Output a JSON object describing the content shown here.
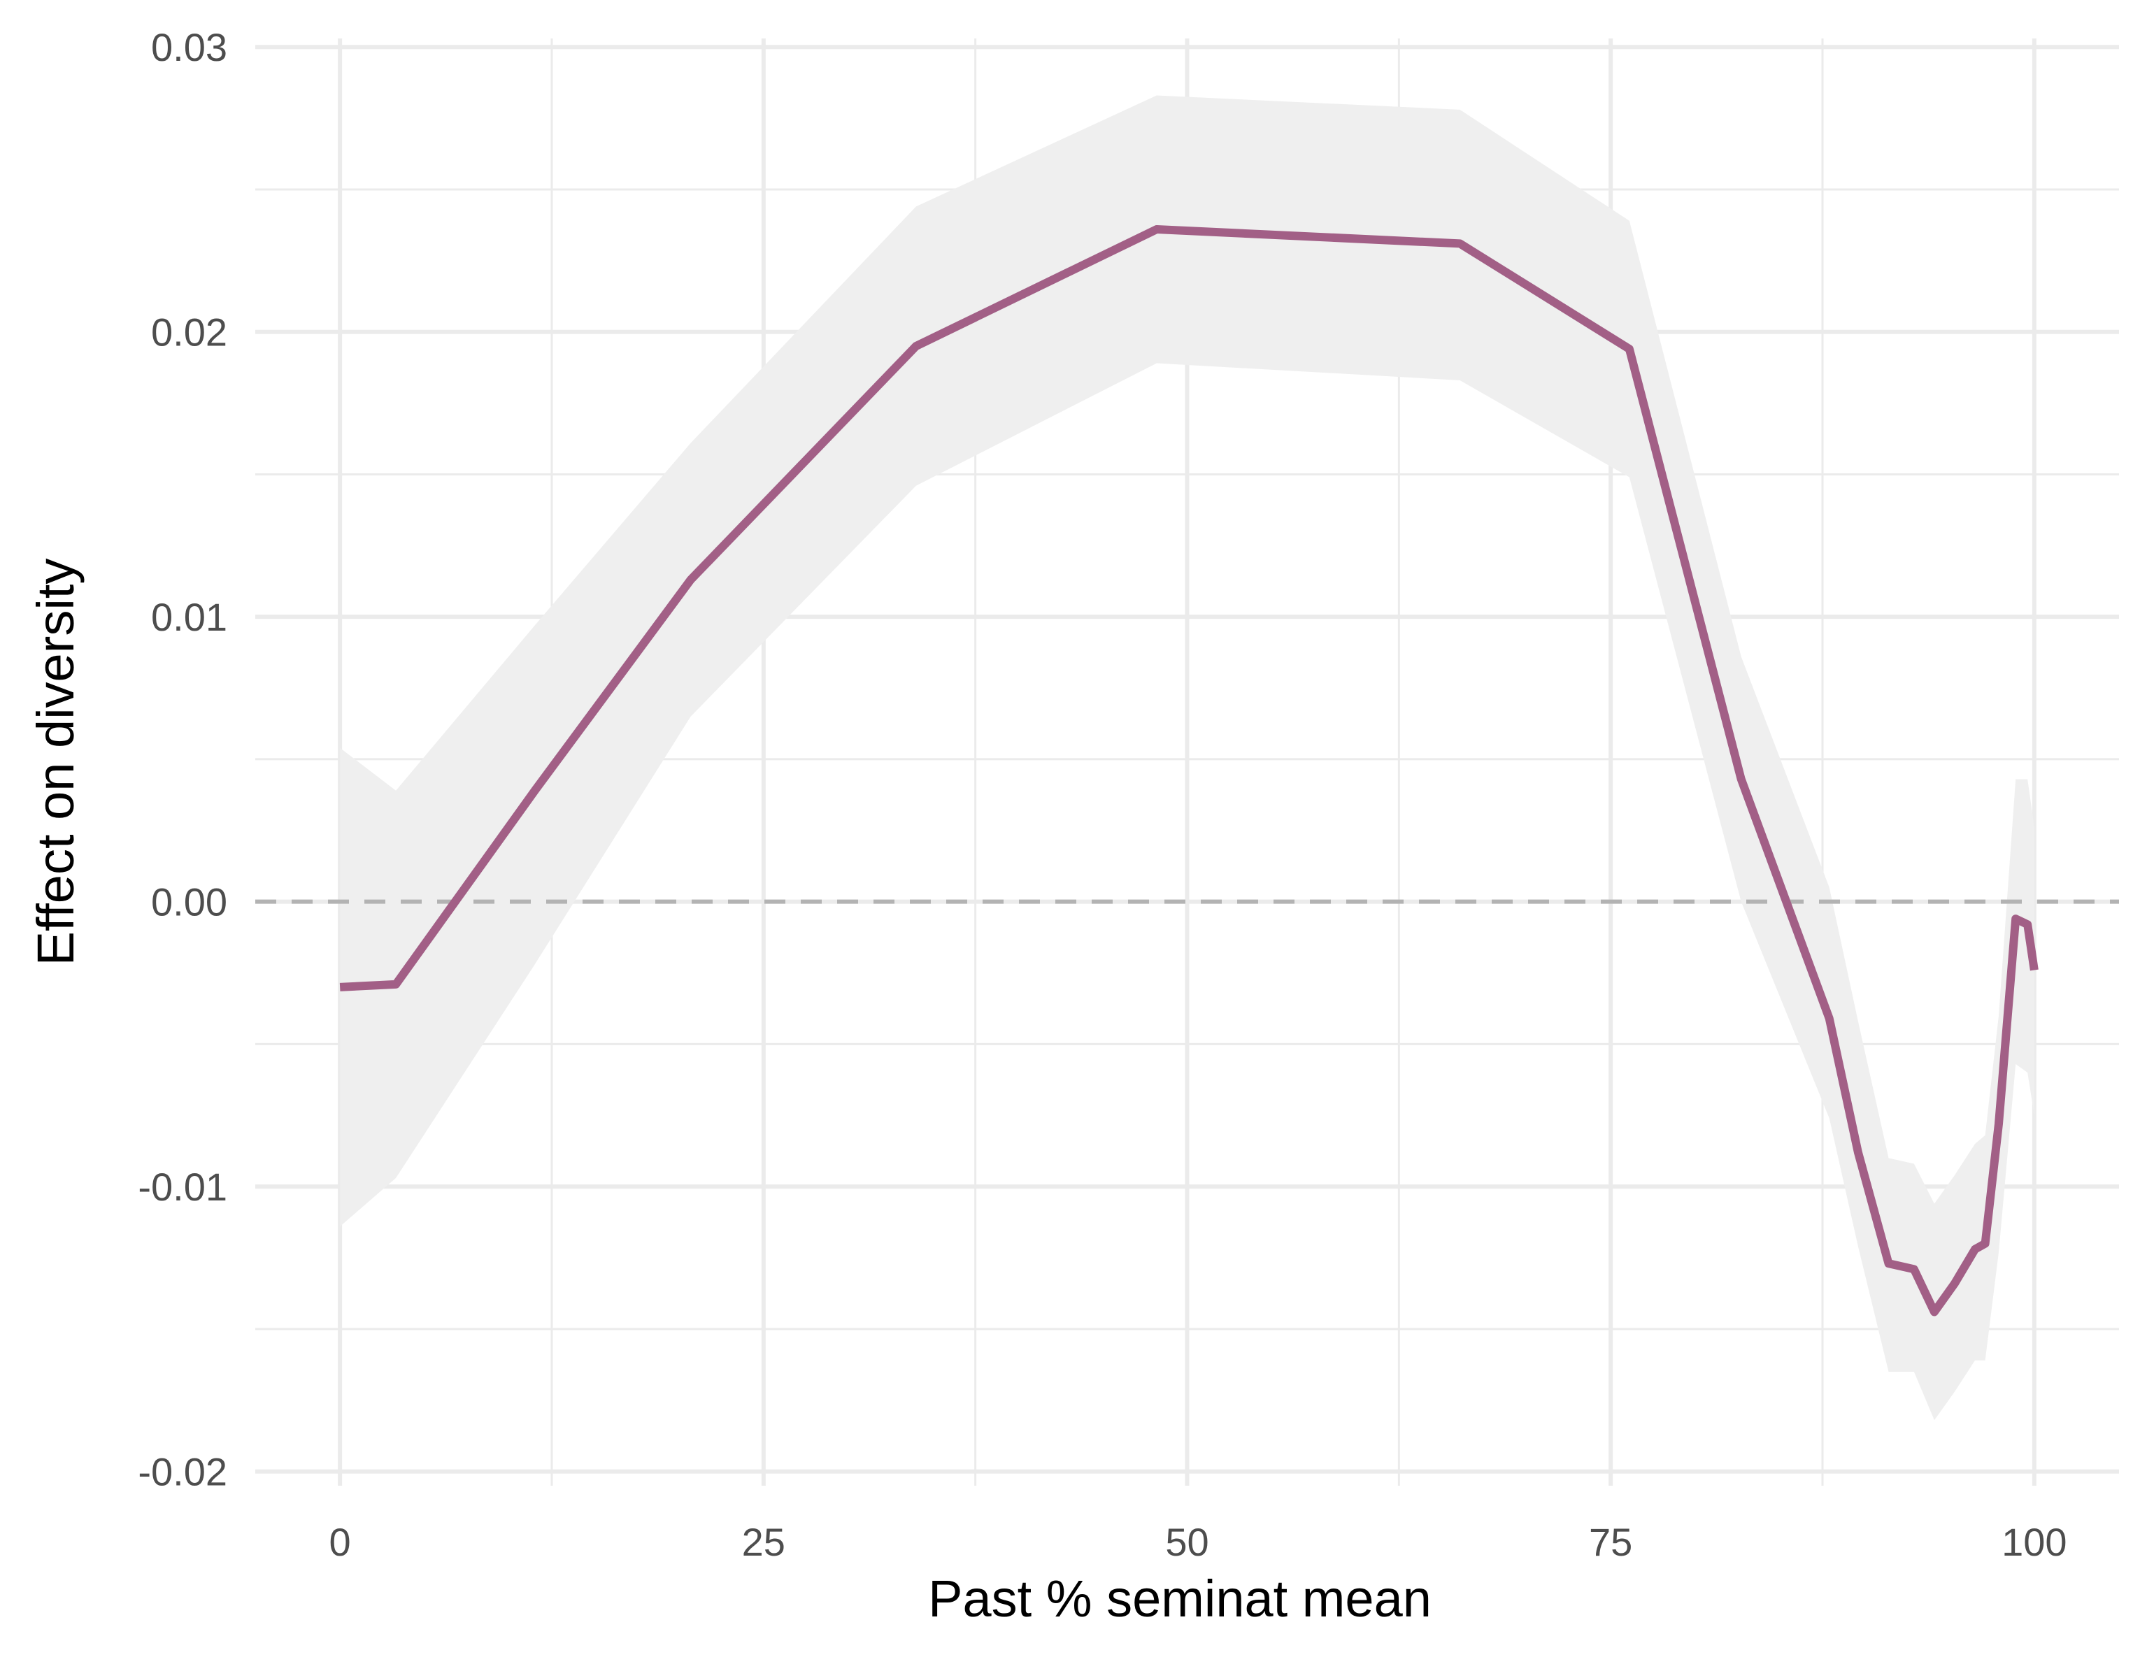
{
  "chart_data": {
    "type": "line",
    "title": "",
    "xlabel": "Past % seminat mean",
    "ylabel": "Effect on diversity",
    "xlim": [
      -5,
      105
    ],
    "ylim": [
      -0.0205,
      0.0303
    ],
    "x_ticks": [
      0,
      25,
      50,
      75,
      100
    ],
    "x_tick_labels": [
      "0",
      "25",
      "50",
      "75",
      "100"
    ],
    "y_ticks": [
      -0.02,
      -0.01,
      0.0,
      0.01,
      0.02,
      0.03
    ],
    "y_tick_labels": [
      "-0.02",
      "-0.01",
      "0.00",
      "0.01",
      "0.02",
      "0.03"
    ],
    "grid": true,
    "reference_line": {
      "y": 0.0,
      "style": "dashed"
    },
    "colors": {
      "line": "#a25f86",
      "ribbon": "#efefef",
      "grid": "#ebebeb",
      "reference": "#b3b3b3"
    },
    "series": [
      {
        "x": [
          0,
          3.3,
          11.5,
          20.7,
          34,
          48.2,
          66.1,
          76.1,
          82.7,
          87.9,
          89.6,
          91.4,
          92.9,
          94.1,
          95.3,
          96.5,
          97.1,
          97.9,
          98.9,
          99.6,
          100
        ],
        "y": [
          -0.003,
          -0.0029,
          0.0039,
          0.0113,
          0.0195,
          0.0236,
          0.0231,
          0.0194,
          0.0043,
          -0.0041,
          -0.0088,
          -0.0127,
          -0.0129,
          -0.0144,
          -0.0134,
          -0.0122,
          -0.012,
          -0.0078,
          -0.0006,
          -0.0008,
          -0.0024
        ],
        "lower": [
          -0.0114,
          -0.0097,
          -0.0022,
          0.0065,
          0.0146,
          0.0189,
          0.0183,
          0.0149,
          0.0,
          -0.0076,
          -0.0121,
          -0.0165,
          -0.0165,
          -0.0182,
          -0.0172,
          -0.0161,
          -0.0161,
          -0.0123,
          -0.0057,
          -0.006,
          -0.0075
        ],
        "upper": [
          0.0054,
          0.0039,
          0.0097,
          0.0161,
          0.0244,
          0.0283,
          0.0278,
          0.0239,
          0.0086,
          0.0005,
          -0.0042,
          -0.009,
          -0.0092,
          -0.0106,
          -0.0096,
          -0.0085,
          -0.0082,
          -0.004,
          0.0043,
          0.0043,
          0.0026
        ]
      }
    ]
  }
}
